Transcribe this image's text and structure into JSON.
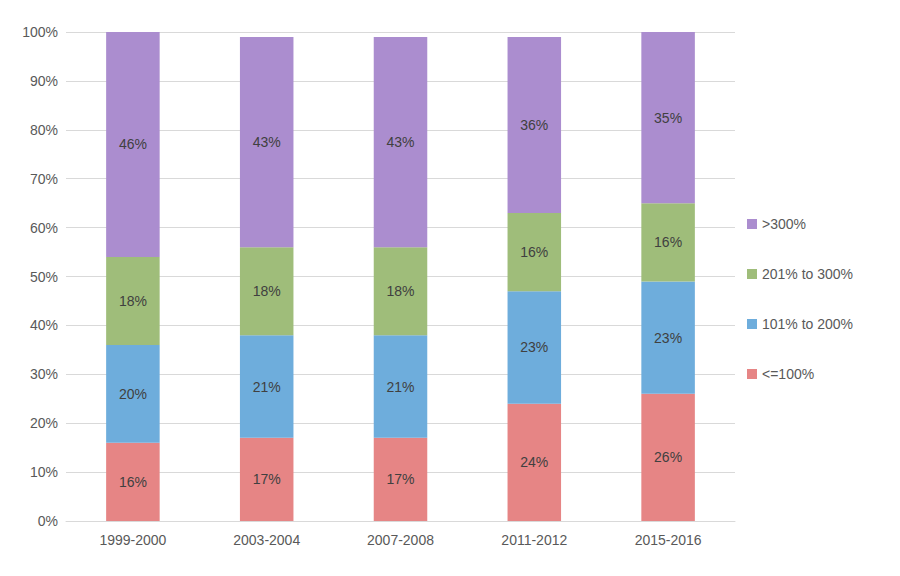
{
  "chart_data": {
    "type": "bar",
    "stacked": true,
    "data_labels": true,
    "grid": true,
    "legend": "right",
    "categories": [
      "1999-2000",
      "2003-2004",
      "2007-2008",
      "2011-2012",
      "2015-2016"
    ],
    "ylim": [
      0,
      100
    ],
    "yticks": [
      {
        "value": 0,
        "label": "0%"
      },
      {
        "value": 10,
        "label": "10%"
      },
      {
        "value": 20,
        "label": "20%"
      },
      {
        "value": 30,
        "label": "30%"
      },
      {
        "value": 40,
        "label": "40%"
      },
      {
        "value": 50,
        "label": "50%"
      },
      {
        "value": 60,
        "label": "60%"
      },
      {
        "value": 70,
        "label": "70%"
      },
      {
        "value": 80,
        "label": "80%"
      },
      {
        "value": 90,
        "label": "90%"
      },
      {
        "value": 100,
        "label": "100%"
      }
    ],
    "series": [
      {
        "name": "<=100%",
        "color": "#e68585",
        "values": [
          16,
          17,
          17,
          24,
          26
        ],
        "value_labels": [
          "16%",
          "17%",
          "17%",
          "24%",
          "26%"
        ]
      },
      {
        "name": "101% to 200%",
        "color": "#6eaddc",
        "values": [
          20,
          21,
          21,
          23,
          23
        ],
        "value_labels": [
          "20%",
          "21%",
          "21%",
          "23%",
          "23%"
        ]
      },
      {
        "name": "201% to 300%",
        "color": "#9fbd7a",
        "values": [
          18,
          18,
          18,
          16,
          16
        ],
        "value_labels": [
          "18%",
          "18%",
          "18%",
          "16%",
          "16%"
        ]
      },
      {
        "name": ">300%",
        "color": "#ab8dcf",
        "values": [
          46,
          43,
          43,
          36,
          35
        ],
        "value_labels": [
          "46%",
          "43%",
          "43%",
          "36%",
          "35%"
        ]
      }
    ]
  }
}
